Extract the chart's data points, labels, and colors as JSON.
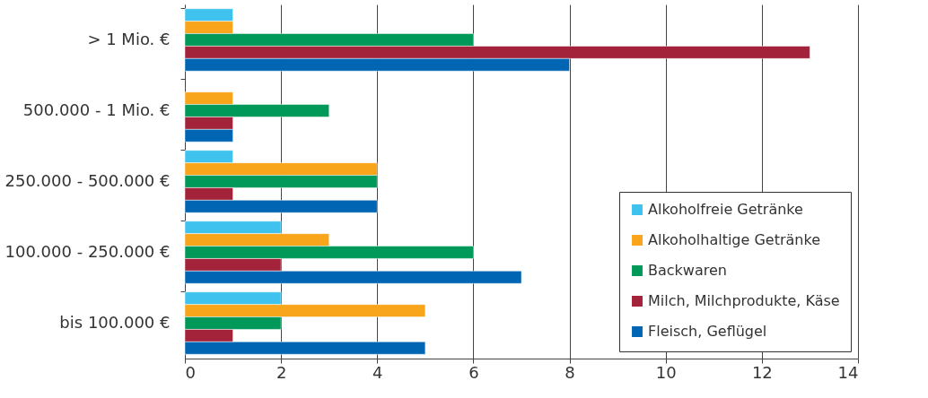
{
  "chart_data": {
    "type": "bar",
    "orientation": "horizontal",
    "categories": [
      "> 1 Mio. €",
      "500.000 - 1 Mio. €",
      "250.000 - 500.000 €",
      "100.000 - 250.000 €",
      "bis 100.000 €"
    ],
    "series": [
      {
        "name": "Alkoholfreie Getränke",
        "color": "#3fc3ee",
        "values": [
          1,
          null,
          1,
          2,
          2
        ]
      },
      {
        "name": "Alkoholhaltige Getränke",
        "color": "#f9a51b",
        "values": [
          1,
          1,
          4,
          3,
          5
        ]
      },
      {
        "name": "Backwaren",
        "color": "#00995a",
        "values": [
          6,
          3,
          4,
          6,
          2
        ]
      },
      {
        "name": "Milch, Milchprodukte, Käse",
        "color": "#a3233a",
        "values": [
          13,
          1,
          1,
          2,
          1
        ]
      },
      {
        "name": "Fleisch, Geflügel",
        "color": "#0066b3",
        "values": [
          8,
          1,
          4,
          7,
          5
        ]
      }
    ],
    "xlim": [
      0,
      14
    ],
    "xticks": [
      0,
      2,
      4,
      6,
      8,
      10,
      12,
      14
    ],
    "grid": "x",
    "legend": "bottom right"
  }
}
